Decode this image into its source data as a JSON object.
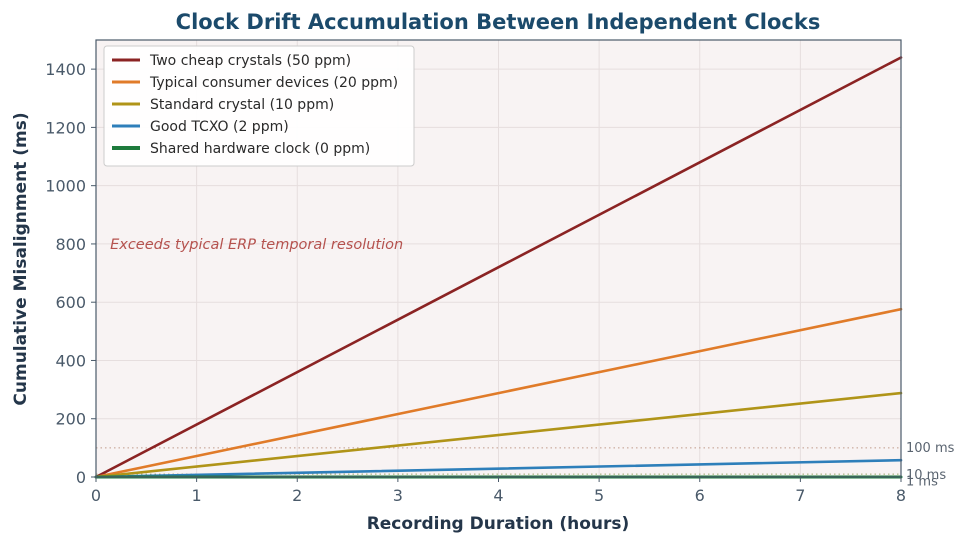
{
  "chart_data": {
    "type": "line",
    "title": "Clock Drift Accumulation Between Independent Clocks",
    "xlabel": "Recording Duration (hours)",
    "ylabel": "Cumulative Misalignment (ms)",
    "xlim": [
      0,
      8
    ],
    "ylim": [
      0,
      1500
    ],
    "x_ticks": [
      0,
      1,
      2,
      3,
      4,
      5,
      6,
      7,
      8
    ],
    "y_ticks": [
      0,
      200,
      400,
      600,
      800,
      1000,
      1200,
      1400
    ],
    "grid": true,
    "legend_position": "top-left",
    "series": [
      {
        "name": "Two cheap crystals (50 ppm)",
        "color": "#8b2323",
        "x": [
          0,
          8
        ],
        "y": [
          0,
          1440
        ]
      },
      {
        "name": "Typical consumer devices (20 ppm)",
        "color": "#e07b29",
        "x": [
          0,
          8
        ],
        "y": [
          0,
          576
        ]
      },
      {
        "name": "Standard crystal (10 ppm)",
        "color": "#b09418",
        "x": [
          0,
          8
        ],
        "y": [
          0,
          288
        ]
      },
      {
        "name": "Good TCXO (2 ppm)",
        "color": "#2e7fba",
        "x": [
          0,
          8
        ],
        "y": [
          0,
          57.6
        ]
      },
      {
        "name": "Shared hardware clock (0 ppm)",
        "color": "#1e7a3c",
        "x": [
          0,
          8
        ],
        "y": [
          0,
          0
        ]
      }
    ],
    "reference_lines": [
      {
        "y": 100,
        "label": "100 ms",
        "color": "#c09a8a"
      },
      {
        "y": 10,
        "label": "10 ms",
        "color": "#9aa86a"
      },
      {
        "y": 1,
        "label": "1 ms",
        "color": "#9ab07a"
      }
    ],
    "annotations": [
      {
        "text": "Exceeds typical ERP temporal resolution",
        "x": 0.15,
        "y": 800
      }
    ]
  }
}
